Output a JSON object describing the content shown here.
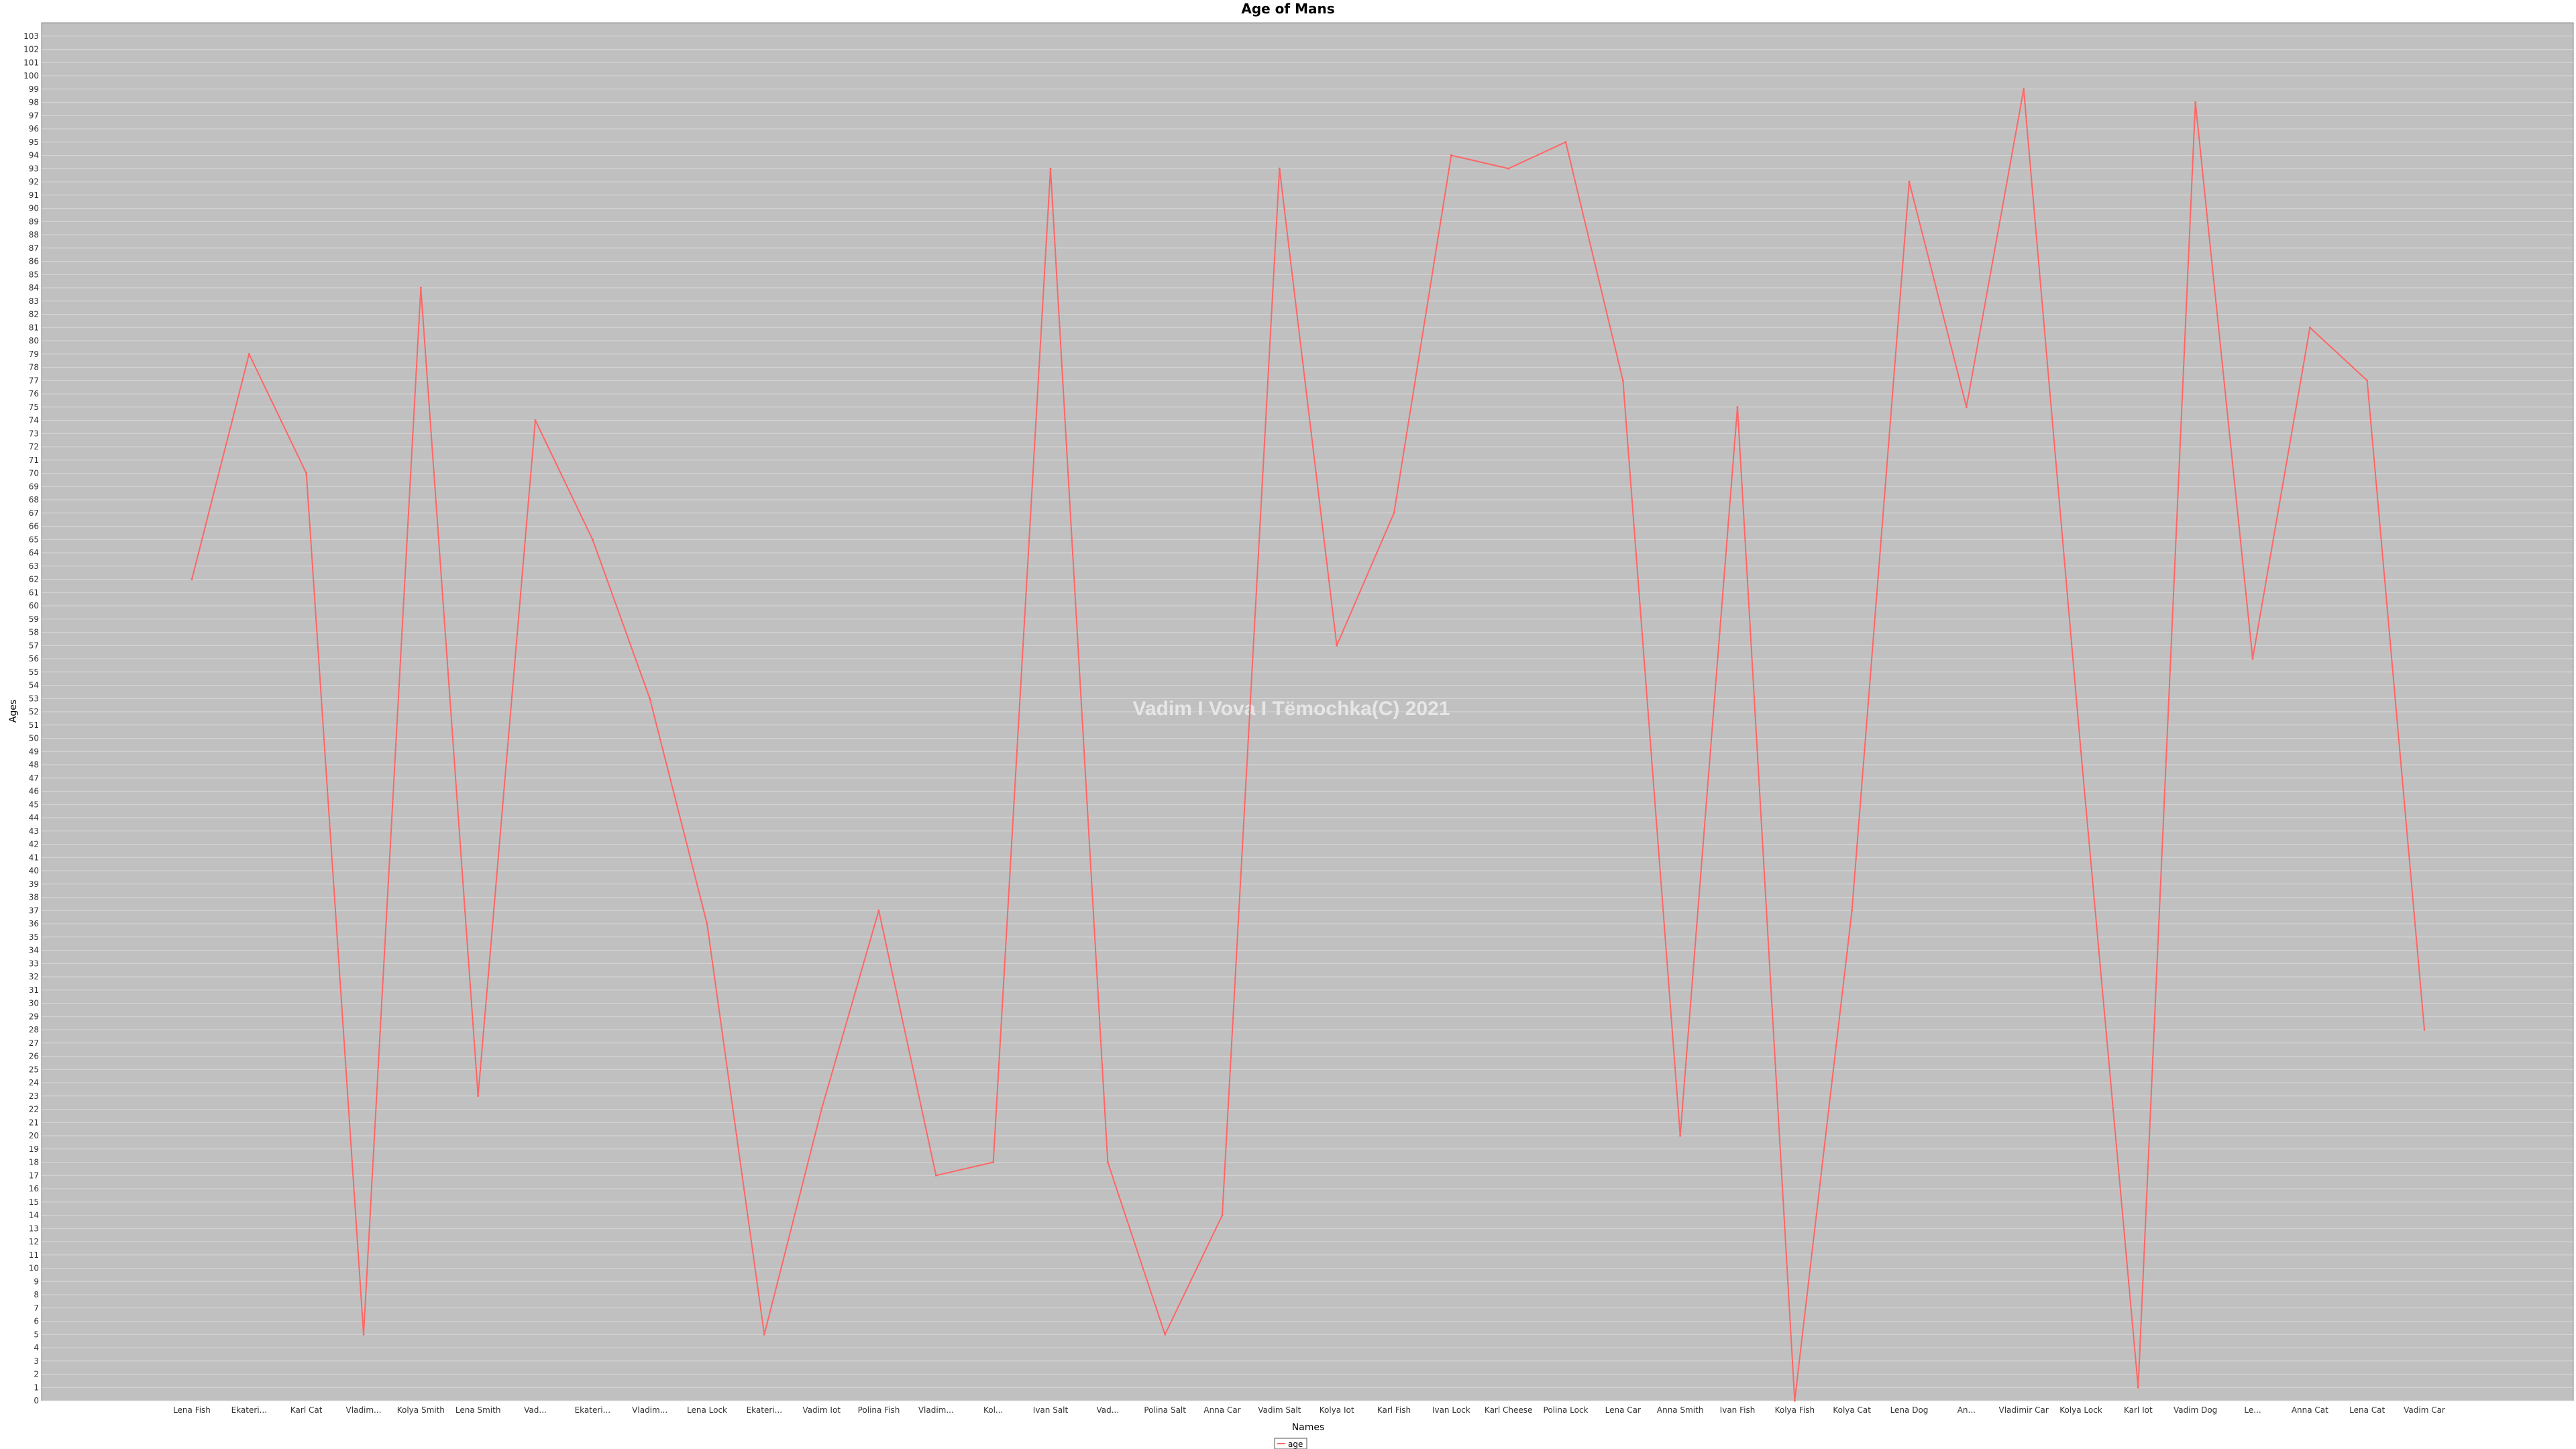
{
  "chart_data": {
    "type": "line",
    "title": "Age of Mans",
    "xlabel": "Names",
    "ylabel": "Ages",
    "ylim": [
      0,
      104
    ],
    "y_tick_step": 1,
    "grid": true,
    "legend_position": "bottom-center",
    "watermark": "Vadim I Vova I Tëmochka(C) 2021",
    "colors": {
      "plot_background": "#c0c0c0",
      "gridline": "#d7d7d7",
      "series": "#ff6666"
    },
    "categories": [
      "Lena Fish",
      "Ekateri...",
      "Karl Cat",
      "Vladim...",
      "Kolya Smith",
      "Lena Smith",
      "Vad...",
      "Ekateri...",
      "Vladim...",
      "Lena Lock",
      "Ekateri...",
      "Vadim Iot",
      "Polina Fish",
      "Vladim...",
      "Kol...",
      "Ivan Salt",
      "Vad...",
      "Polina Salt",
      "Anna Car",
      "Vadim Salt",
      "Kolya Iot",
      "Karl Fish",
      "Ivan Lock",
      "Karl Cheese",
      "Polina Lock",
      "Lena Car",
      "Anna Smith",
      "Ivan Fish",
      "Kolya Fish",
      "Kolya Cat",
      "Lena Dog",
      "An...",
      "Vladimir Car",
      "Kolya Lock",
      "Karl Iot",
      "Vadim Dog",
      "Le...",
      "Anna Cat",
      "Lena Cat",
      "Vadim Car"
    ],
    "series": [
      {
        "name": "age",
        "values": [
          62,
          79,
          70,
          5,
          84,
          23,
          74,
          65,
          53,
          36,
          5,
          22,
          37,
          17,
          18,
          93,
          18,
          5,
          14,
          93,
          57,
          67,
          94,
          93,
          95,
          77,
          20,
          75,
          0,
          37,
          92,
          75,
          99,
          49,
          1,
          98,
          56,
          81,
          77,
          28
        ]
      }
    ]
  }
}
